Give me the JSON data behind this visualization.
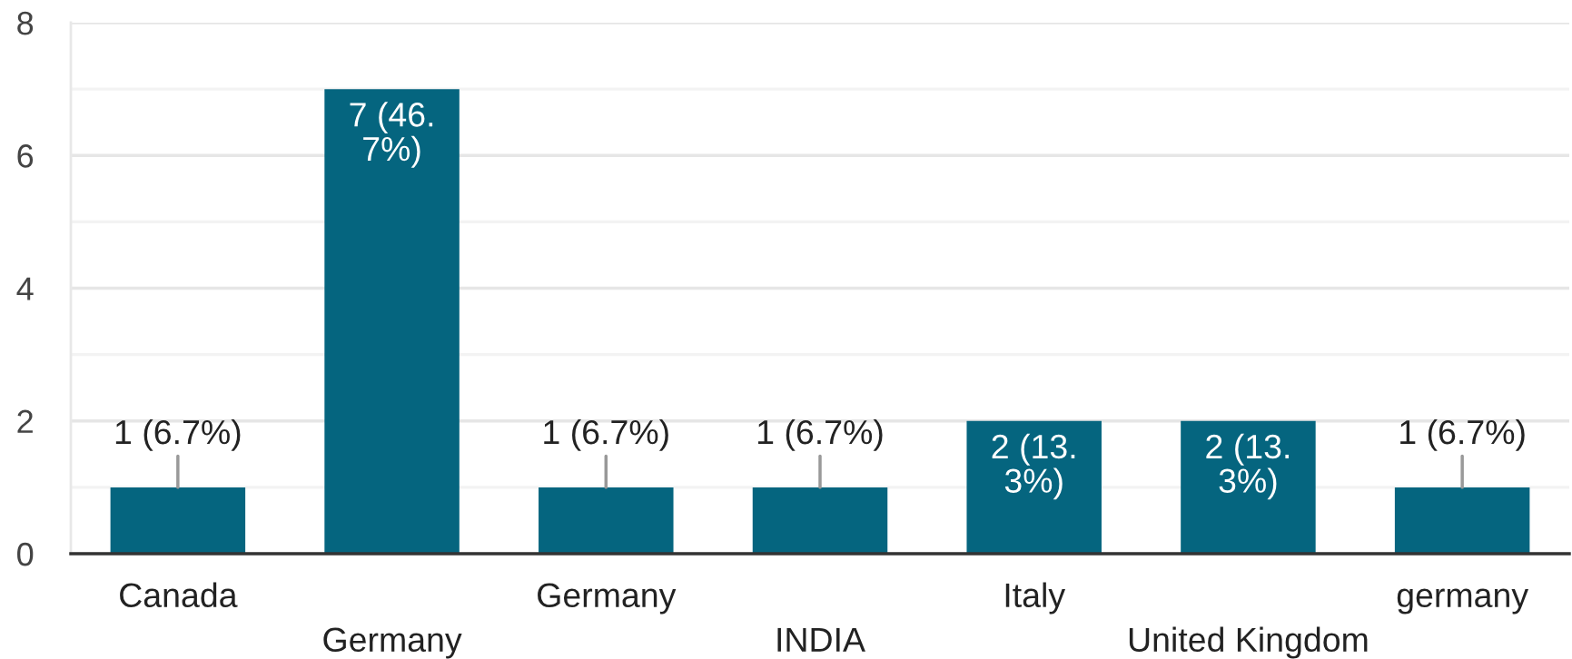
{
  "chart_data": {
    "type": "bar",
    "categories": [
      "Canada",
      "Germany",
      "Germany",
      "INDIA",
      "Italy",
      "United Kingdom",
      "germany"
    ],
    "values": [
      1,
      7,
      1,
      1,
      2,
      2,
      1
    ],
    "color": "#05657f",
    "value_labels": [
      "1 (6.7%)",
      "7 (46.7%)",
      "1 (6.7%)",
      "1 (6.7%)",
      "2 (13.3%)",
      "2 (13.3%)",
      "1 (6.7%)"
    ],
    "ylim": [
      0,
      8
    ],
    "yticks": [
      0,
      {
        "value": 1,
        "label": null
      },
      2,
      {
        "value": 3,
        "label": null
      },
      4,
      {
        "value": 5,
        "label": null
      },
      6,
      {
        "value": 7,
        "label": null
      },
      8
    ],
    "grid": "y"
  }
}
